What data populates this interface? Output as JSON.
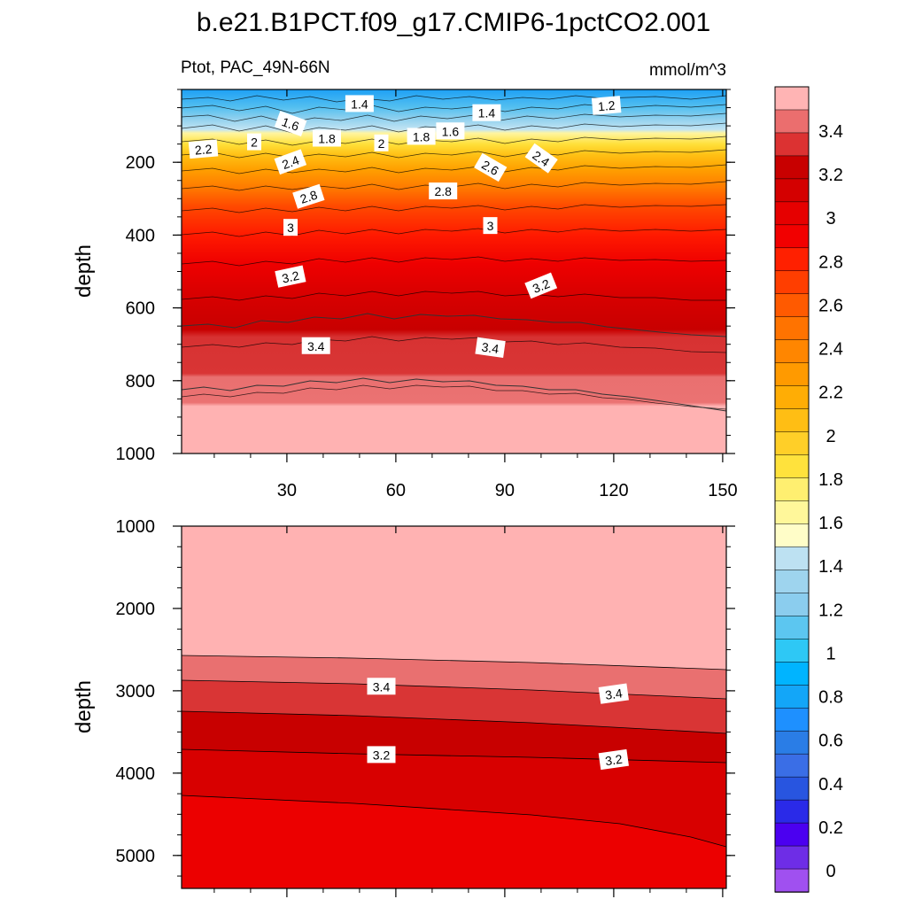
{
  "figure": {
    "title": "b.e21.B1PCT.f09_g17.CMIP6-1pctCO2.001",
    "left_label": "Ptot, PAC_49N-66N",
    "right_label": "mmol/m^3"
  },
  "chart_data": [
    {
      "type": "contour",
      "panel": "upper",
      "ylabel": "depth",
      "xlabel": "",
      "xlim": [
        1,
        151
      ],
      "ylim": [
        1000,
        0
      ],
      "xticks": [
        30,
        60,
        90,
        120,
        150
      ],
      "yticks": [
        200,
        400,
        600,
        800,
        1000
      ],
      "contour_labels": [
        {
          "text": "1.4",
          "x": 50,
          "depth": 40
        },
        {
          "text": "1.2",
          "x": 118,
          "depth": 45
        },
        {
          "text": "1.4",
          "x": 85,
          "depth": 65
        },
        {
          "text": "1.6",
          "x": 31,
          "depth": 95
        },
        {
          "text": "1.6",
          "x": 75,
          "depth": 115
        },
        {
          "text": "1.8",
          "x": 41,
          "depth": 135
        },
        {
          "text": "1.8",
          "x": 67,
          "depth": 130
        },
        {
          "text": "2",
          "x": 21,
          "depth": 145
        },
        {
          "text": "2",
          "x": 56,
          "depth": 148
        },
        {
          "text": "2.2",
          "x": 7,
          "depth": 165
        },
        {
          "text": "2.4",
          "x": 31,
          "depth": 200
        },
        {
          "text": "2.4",
          "x": 100,
          "depth": 190
        },
        {
          "text": "2.6",
          "x": 86,
          "depth": 215
        },
        {
          "text": "2.8",
          "x": 36,
          "depth": 295
        },
        {
          "text": "2.8",
          "x": 73,
          "depth": 280
        },
        {
          "text": "3",
          "x": 31,
          "depth": 380
        },
        {
          "text": "3",
          "x": 86,
          "depth": 375
        },
        {
          "text": "3.2",
          "x": 31,
          "depth": 515
        },
        {
          "text": "3.2",
          "x": 100,
          "depth": 540
        },
        {
          "text": "3.4",
          "x": 38,
          "depth": 705
        },
        {
          "text": "3.4",
          "x": 86,
          "depth": 710
        }
      ]
    },
    {
      "type": "contour",
      "panel": "lower",
      "ylabel": "depth",
      "xlabel": "",
      "xlim": [
        1,
        151
      ],
      "ylim": [
        5400,
        1000
      ],
      "xticks": [
        30,
        60,
        90,
        120,
        150
      ],
      "yticks": [
        1000,
        2000,
        3000,
        4000,
        5000
      ],
      "contour_labels": [
        {
          "text": "3.4",
          "x": 56,
          "depth": 2950
        },
        {
          "text": "3.4",
          "x": 120,
          "depth": 3040
        },
        {
          "text": "3.2",
          "x": 56,
          "depth": 3780
        },
        {
          "text": "3.2",
          "x": 120,
          "depth": 3840
        }
      ]
    }
  ],
  "colorbar": {
    "tick_labels": [
      "0",
      "0.2",
      "0.4",
      "0.6",
      "0.8",
      "1",
      "1.2",
      "1.4",
      "1.6",
      "1.8",
      "2",
      "2.2",
      "2.4",
      "2.6",
      "2.8",
      "3",
      "3.2",
      "3.4"
    ],
    "colors": [
      "#a050f0",
      "#6e2de6",
      "#4b00f0",
      "#2a2ae8",
      "#2855e0",
      "#3a6ee6",
      "#2a7de6",
      "#1e90ff",
      "#13a6f8",
      "#00b4ff",
      "#2ec8f5",
      "#5cc6f0",
      "#8bcdee",
      "#9ed4ee",
      "#bde1f2",
      "#fffdc8",
      "#fff79a",
      "#ffef70",
      "#ffe23c",
      "#ffcf28",
      "#ffbe14",
      "#ffad05",
      "#ff9a00",
      "#ff8600",
      "#ff7300",
      "#ff5a00",
      "#ff3e00",
      "#ff2000",
      "#f20000",
      "#e60000",
      "#d40000",
      "#c80000",
      "#dc3232",
      "#eb6e6e",
      "#ffb4b4"
    ]
  }
}
